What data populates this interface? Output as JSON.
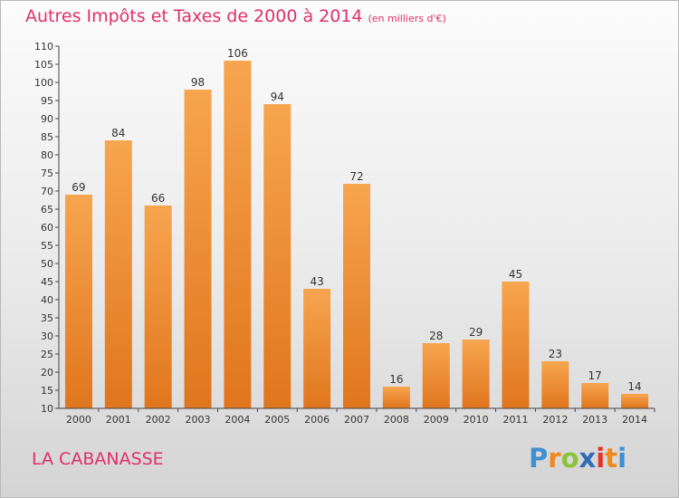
{
  "chart_data": {
    "type": "bar",
    "title": "Autres Impôts et Taxes de 2000 à 2014",
    "unit": "(en milliers d'€)",
    "categories": [
      "2000",
      "2001",
      "2002",
      "2003",
      "2004",
      "2005",
      "2006",
      "2007",
      "2008",
      "2009",
      "2010",
      "2011",
      "2012",
      "2013",
      "2014"
    ],
    "values": [
      69,
      84,
      66,
      98,
      106,
      94,
      43,
      72,
      16,
      28,
      29,
      45,
      23,
      17,
      14
    ],
    "ylim": [
      10,
      110
    ],
    "yticks": [
      10,
      15,
      20,
      25,
      30,
      35,
      40,
      45,
      50,
      55,
      60,
      65,
      70,
      75,
      80,
      85,
      90,
      95,
      100,
      105,
      110
    ],
    "xlabel": "",
    "ylabel": "",
    "grid": false,
    "bar_color_light": "#f7a54f",
    "bar_color_dark": "#e0761d"
  },
  "footer": {
    "city": "LA CABANASSE",
    "brand_letters": [
      "P",
      "r",
      "o",
      "x",
      "i",
      "t",
      "i"
    ],
    "brand_colors": [
      "#3f8fd1",
      "#f08a1c",
      "#8bc33a",
      "#2f6db5",
      "#e6332a",
      "#f08a1c",
      "#3f8fd1"
    ]
  },
  "colors": {
    "title": "#e0306a",
    "axis": "#333333"
  }
}
